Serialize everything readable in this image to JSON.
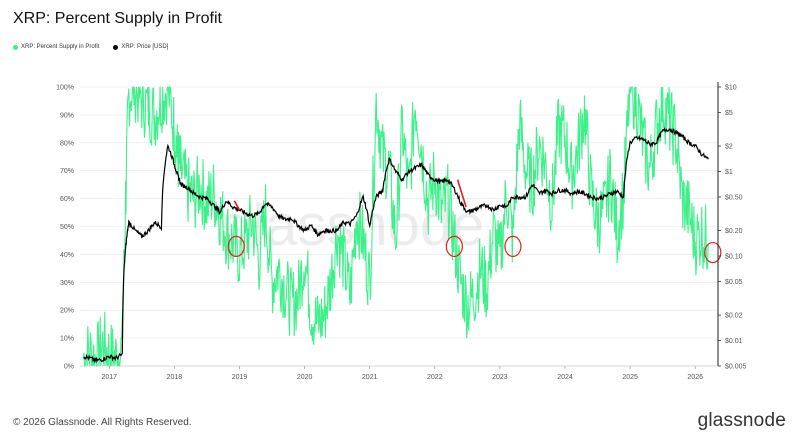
{
  "title": "XRP: Percent Supply in Profit",
  "footer": "© 2026 Glassnode. All Rights Reserved.",
  "brand": "glassnode",
  "watermark": "glassnode",
  "colors": {
    "supply": "#3ef08a",
    "price": "#000000",
    "highlight": "#e0221c",
    "grid": "#e6e6e6"
  },
  "chart_data": {
    "type": "line",
    "title": "XRP: Percent Supply in Profit",
    "legend_placement": "top-left",
    "grid": true,
    "x_ticks": [
      "2017",
      "2018",
      "2019",
      "2020",
      "2021",
      "2022",
      "2023",
      "2024",
      "2025",
      "2026"
    ],
    "x_range": [
      2016.55,
      2026.35
    ],
    "left_axis": {
      "ticks": [
        "0%",
        "10%",
        "20%",
        "30%",
        "40%",
        "50%",
        "60%",
        "70%",
        "80%",
        "90%",
        "100%"
      ],
      "range": [
        0,
        100
      ]
    },
    "right_axis": {
      "scale": "log",
      "ticks": [
        "$0.005",
        "$0.01",
        "$0.02",
        "$0.05",
        "$0.10",
        "$0.20",
        "$0.50",
        "$1",
        "$2",
        "$5",
        "$10"
      ],
      "tick_values": [
        0.005,
        0.01,
        0.02,
        0.05,
        0.1,
        0.2,
        0.5,
        1,
        2,
        5,
        10
      ],
      "range": [
        0.005,
        10
      ]
    },
    "series": [
      {
        "name": "XRP: Percent Supply in Profit",
        "axis": "left",
        "x": [
          2016.6,
          2016.7,
          2016.8,
          2016.9,
          2017.0,
          2017.1,
          2017.2,
          2017.25,
          2017.3,
          2017.4,
          2017.5,
          2017.6,
          2017.7,
          2017.8,
          2017.9,
          2018.0,
          2018.05,
          2018.1,
          2018.2,
          2018.3,
          2018.4,
          2018.5,
          2018.6,
          2018.7,
          2018.8,
          2018.9,
          2019.0,
          2019.1,
          2019.2,
          2019.3,
          2019.4,
          2019.5,
          2019.6,
          2019.7,
          2019.8,
          2019.9,
          2020.0,
          2020.1,
          2020.2,
          2020.3,
          2020.4,
          2020.5,
          2020.6,
          2020.7,
          2020.8,
          2020.9,
          2021.0,
          2021.1,
          2021.2,
          2021.3,
          2021.4,
          2021.5,
          2021.6,
          2021.7,
          2021.8,
          2021.9,
          2022.0,
          2022.1,
          2022.2,
          2022.3,
          2022.4,
          2022.5,
          2022.6,
          2022.7,
          2022.8,
          2022.9,
          2023.0,
          2023.1,
          2023.2,
          2023.3,
          2023.4,
          2023.5,
          2023.6,
          2023.7,
          2023.8,
          2023.9,
          2024.0,
          2024.1,
          2024.2,
          2024.3,
          2024.4,
          2024.5,
          2024.6,
          2024.7,
          2024.8,
          2024.9,
          2025.0,
          2025.1,
          2025.2,
          2025.3,
          2025.4,
          2025.5,
          2025.6,
          2025.7,
          2025.8,
          2025.9,
          2026.0,
          2026.1,
          2026.2
        ],
        "values": [
          3,
          5,
          2,
          8,
          4,
          3,
          6,
          60,
          98,
          100,
          95,
          93,
          90,
          96,
          100,
          85,
          75,
          70,
          63,
          60,
          65,
          58,
          62,
          55,
          48,
          44,
          40,
          45,
          52,
          38,
          55,
          30,
          35,
          28,
          22,
          25,
          40,
          20,
          15,
          18,
          30,
          48,
          38,
          25,
          55,
          45,
          30,
          95,
          75,
          70,
          45,
          85,
          62,
          95,
          78,
          58,
          68,
          55,
          60,
          45,
          30,
          22,
          25,
          35,
          28,
          48,
          38,
          62,
          45,
          88,
          70,
          65,
          80,
          72,
          58,
          85,
          82,
          68,
          78,
          92,
          62,
          52,
          55,
          68,
          48,
          62,
          100,
          95,
          80,
          70,
          85,
          95,
          88,
          82,
          60,
          55,
          45,
          48,
          44
        ]
      },
      {
        "name": "XRP: Price [USD]",
        "axis": "right",
        "x": [
          2016.6,
          2016.7,
          2016.8,
          2016.9,
          2017.0,
          2017.1,
          2017.2,
          2017.25,
          2017.3,
          2017.4,
          2017.5,
          2017.6,
          2017.7,
          2017.8,
          2017.9,
          2018.0,
          2018.05,
          2018.1,
          2018.2,
          2018.3,
          2018.4,
          2018.5,
          2018.6,
          2018.7,
          2018.8,
          2018.9,
          2019.0,
          2019.1,
          2019.2,
          2019.3,
          2019.4,
          2019.5,
          2019.6,
          2019.7,
          2019.8,
          2019.9,
          2020.0,
          2020.1,
          2020.2,
          2020.3,
          2020.4,
          2020.5,
          2020.6,
          2020.7,
          2020.8,
          2020.9,
          2021.0,
          2021.1,
          2021.2,
          2021.3,
          2021.4,
          2021.5,
          2021.6,
          2021.7,
          2021.8,
          2021.9,
          2022.0,
          2022.1,
          2022.2,
          2022.3,
          2022.4,
          2022.5,
          2022.6,
          2022.7,
          2022.8,
          2022.9,
          2023.0,
          2023.1,
          2023.2,
          2023.3,
          2023.4,
          2023.5,
          2023.6,
          2023.7,
          2023.8,
          2023.9,
          2024.0,
          2024.1,
          2024.2,
          2024.3,
          2024.4,
          2024.5,
          2024.6,
          2024.7,
          2024.8,
          2024.9,
          2025.0,
          2025.1,
          2025.2,
          2025.3,
          2025.4,
          2025.5,
          2025.6,
          2025.7,
          2025.8,
          2025.9,
          2026.0,
          2026.1,
          2026.2
        ],
        "values": [
          0.0065,
          0.0062,
          0.0058,
          0.006,
          0.0065,
          0.0062,
          0.0068,
          0.12,
          0.25,
          0.2,
          0.17,
          0.2,
          0.25,
          0.22,
          2.0,
          1.2,
          0.9,
          0.7,
          0.65,
          0.55,
          0.5,
          0.48,
          0.4,
          0.33,
          0.45,
          0.38,
          0.35,
          0.32,
          0.3,
          0.32,
          0.42,
          0.38,
          0.3,
          0.27,
          0.28,
          0.23,
          0.2,
          0.23,
          0.18,
          0.2,
          0.2,
          0.2,
          0.25,
          0.24,
          0.3,
          0.5,
          0.22,
          0.5,
          0.6,
          1.4,
          1.0,
          0.8,
          1.0,
          1.1,
          1.2,
          0.9,
          0.8,
          0.75,
          0.8,
          0.62,
          0.42,
          0.33,
          0.35,
          0.38,
          0.4,
          0.35,
          0.4,
          0.38,
          0.5,
          0.5,
          0.5,
          0.7,
          0.55,
          0.6,
          0.55,
          0.6,
          0.6,
          0.55,
          0.58,
          0.55,
          0.5,
          0.48,
          0.5,
          0.55,
          0.58,
          0.5,
          2.2,
          2.5,
          2.4,
          2.1,
          2.2,
          3.0,
          3.2,
          2.9,
          2.6,
          2.2,
          2.0,
          1.6,
          1.4
        ]
      }
    ],
    "annotations": [
      {
        "type": "circle",
        "x": 2018.95,
        "y_price": 0.13
      },
      {
        "type": "circle",
        "x": 2022.3,
        "y_price": 0.13
      },
      {
        "type": "circle",
        "x": 2023.2,
        "y_price": 0.13
      },
      {
        "type": "circle",
        "x": 2026.27,
        "y_price": 0.11
      },
      {
        "type": "segment",
        "x": [
          2022.35,
          2022.48
        ],
        "y_price": [
          0.8,
          0.38
        ]
      },
      {
        "type": "segment",
        "x": [
          2018.92,
          2019.0
        ],
        "y_price": [
          0.45,
          0.35
        ]
      }
    ]
  }
}
